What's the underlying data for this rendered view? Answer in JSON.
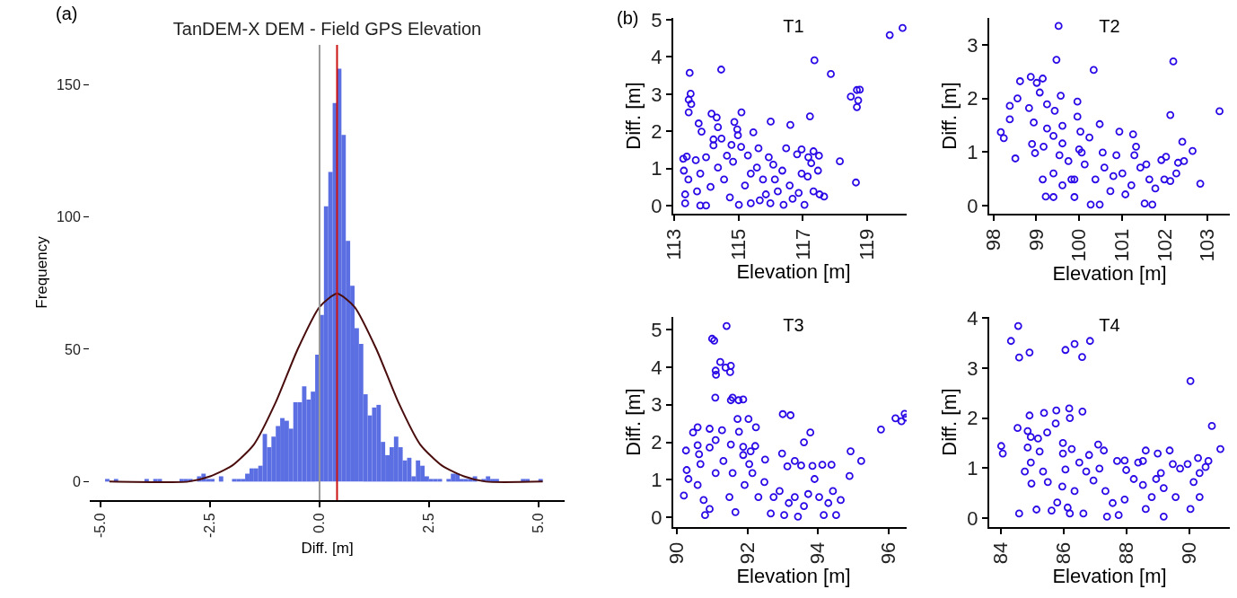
{
  "chart_data": [
    {
      "type": "histogram",
      "title": "TanDEM-X DEM - Field GPS Elevation",
      "xlabel": "Diff. [m]",
      "ylabel": "Frequency",
      "annotations": [
        "(a)"
      ],
      "xlim": [
        -5.25,
        5.6
      ],
      "ylim": [
        -7,
        165
      ],
      "xticks": [
        {
          "value": -5,
          "label": "-5.0"
        },
        {
          "value": -2.5,
          "label": "-2.5"
        },
        {
          "value": 0,
          "label": "0.0"
        },
        {
          "value": 2.5,
          "label": "2.5"
        },
        {
          "value": 5,
          "label": "5.0"
        }
      ],
      "yticks": [
        0,
        50,
        100,
        150
      ],
      "ref_lines": [
        {
          "axis": "x",
          "value": 0,
          "color": "#999999"
        },
        {
          "axis": "x",
          "value": 0.4,
          "color": "#cc1111"
        }
      ],
      "series": [
        {
          "type": "histogram",
          "color": "#5b6fe3",
          "bins": [
            -4.9,
            -4.8,
            -4.7,
            -4.6,
            -4.5,
            -4.4,
            -4.3,
            -4.2,
            -4.1,
            -4.0,
            -3.9,
            -3.8,
            -3.7,
            -3.6,
            -3.5,
            -3.4,
            -3.3,
            -3.2,
            -3.1,
            -3.0,
            -2.9,
            -2.8,
            -2.7,
            -2.6,
            -2.5,
            -2.4,
            -2.3,
            -2.2,
            -2.1,
            -2.0,
            -1.9,
            -1.8,
            -1.7,
            -1.6,
            -1.5,
            -1.4,
            -1.3,
            -1.2,
            -1.1,
            -1.0,
            -0.9,
            -0.8,
            -0.7,
            -0.6,
            -0.5,
            -0.4,
            -0.3,
            -0.2,
            -0.1,
            0.0,
            0.1,
            0.2,
            0.3,
            0.4,
            0.5,
            0.6,
            0.7,
            0.8,
            0.9,
            1.0,
            1.1,
            1.2,
            1.3,
            1.4,
            1.5,
            1.6,
            1.7,
            1.8,
            1.9,
            2.0,
            2.1,
            2.2,
            2.3,
            2.4,
            2.5,
            2.6,
            2.7,
            2.8,
            2.9,
            3.0,
            3.1,
            3.2,
            3.3,
            3.4,
            3.5,
            3.6,
            3.7,
            3.8,
            3.9,
            4.0,
            4.1,
            4.2,
            4.3,
            4.4,
            4.5,
            4.6,
            4.7,
            4.8,
            4.9,
            5.0,
            5.1
          ],
          "values": [
            1,
            0,
            1,
            0,
            0,
            0,
            0,
            0,
            0,
            1,
            0,
            1,
            1,
            0,
            0,
            0,
            0,
            1,
            1,
            1,
            0,
            2,
            3,
            1,
            1,
            0,
            2,
            0,
            0,
            1,
            1,
            1,
            3,
            5,
            5,
            6,
            18,
            13,
            17,
            21,
            24,
            23,
            20,
            30,
            30,
            36,
            31,
            34,
            48,
            63,
            104,
            117,
            143,
            156,
            131,
            91,
            74,
            58,
            52,
            33,
            25,
            28,
            29,
            15,
            10,
            13,
            17,
            13,
            8,
            9,
            2,
            8,
            6,
            2,
            1,
            1,
            1,
            0,
            1,
            3,
            3,
            1,
            1,
            1,
            2,
            0,
            1,
            2,
            1,
            1,
            0,
            0,
            0,
            0,
            0,
            1,
            1,
            0,
            0,
            1
          ]
        },
        {
          "type": "line",
          "color": "#4a0d0d",
          "x": [
            -4.8,
            -3,
            -2.5,
            -2,
            -1.5,
            -1,
            -0.5,
            0,
            0.4,
            0.8,
            1.3,
            1.8,
            2.3,
            2.8,
            3.3,
            3.8,
            5.1
          ],
          "values": [
            0,
            0,
            2,
            6,
            14,
            30,
            50,
            66,
            71,
            66,
            50,
            30,
            14,
            6,
            2,
            0,
            0
          ]
        }
      ]
    },
    {
      "type": "scatter",
      "title": "T1",
      "xlabel": "Elevation [m]",
      "ylabel": "Diff. [m]",
      "annotations": [
        "(b)"
      ],
      "color": "#2a0ae6",
      "marker": "circle",
      "xlim": [
        112.97,
        120.45
      ],
      "ylim": [
        -0.22,
        5.05
      ],
      "xticks": [
        113,
        115,
        117,
        119
      ],
      "yticks": [
        0,
        1,
        2,
        3,
        4,
        5
      ],
      "x": [
        113.48,
        113.51,
        113.45,
        113.53,
        113.45,
        114.46,
        117.36,
        117.87,
        119.7,
        120.1,
        118.49,
        118.68,
        118.77,
        118.72,
        118.68,
        118.65,
        118.15,
        117.22,
        116.61,
        116.0,
        115.09,
        114.16,
        114.32,
        113.76,
        113.85,
        114.36,
        114.87,
        114.96,
        114.98,
        115.46,
        115.62,
        115.08,
        114.22,
        114.47,
        114.22,
        114.78,
        115.29,
        115.94,
        116.48,
        116.96,
        117.33,
        117.5,
        117.17,
        117.47,
        117.26,
        116.82,
        113.28,
        113.39,
        113.67,
        113.3,
        113.99,
        113.44,
        113.81,
        113.34,
        113.34,
        113.81,
        113.99,
        113.71,
        114.13,
        114.36,
        114.55,
        114.83,
        114.73,
        115.01,
        115.2,
        115.38,
        115.57,
        115.76,
        115.85,
        115.99,
        116.13,
        116.22,
        116.36,
        116.4,
        116.59,
        116.68,
        116.87,
        117.05,
        117.15,
        117.33,
        117.52,
        117.66,
        116.96,
        115.38,
        115.66,
        116.08,
        114.64
      ],
      "values": [
        3.57,
        3.01,
        2.85,
        2.73,
        2.51,
        3.66,
        3.91,
        3.54,
        4.59,
        4.78,
        2.93,
        3.11,
        3.12,
        2.83,
        2.65,
        0.62,
        1.19,
        2.4,
        2.17,
        2.26,
        2.51,
        2.47,
        2.37,
        2.21,
        1.99,
        2.11,
        2.25,
        2.05,
        1.89,
        1.97,
        1.54,
        1.58,
        1.78,
        1.8,
        1.62,
        1.63,
        1.35,
        1.3,
        1.54,
        1.51,
        1.46,
        1.34,
        1.3,
        0.94,
        1.14,
        1.38,
        1.26,
        1.32,
        1.22,
        0.94,
        1.3,
        0.7,
        0.86,
        0.3,
        0.06,
        0.0,
        0.0,
        0.38,
        0.5,
        1.02,
        0.7,
        1.18,
        0.22,
        0.02,
        0.54,
        0.86,
        1.02,
        0.7,
        0.3,
        0.06,
        0.7,
        0.38,
        0.94,
        0.02,
        0.54,
        0.18,
        0.34,
        0.02,
        0.78,
        0.38,
        0.3,
        0.24,
        0.86,
        0.06,
        0.14,
        1.1,
        1.34
      ]
    },
    {
      "type": "scatter",
      "title": "T2",
      "xlabel": "Elevation [m]",
      "ylabel": "Diff. [m]",
      "color": "#2a0ae6",
      "marker": "circle",
      "xlim": [
        97.9,
        103.52
      ],
      "ylim": [
        -0.15,
        3.5
      ],
      "xticks": [
        98,
        99,
        100,
        101,
        102,
        103
      ],
      "yticks": [
        0,
        1,
        2,
        3
      ],
      "x": [
        99.52,
        99.47,
        100.34,
        102.2,
        102.13,
        103.28,
        98.17,
        98.24,
        98.51,
        98.38,
        98.38,
        98.56,
        98.62,
        98.87,
        99.01,
        99.15,
        99.08,
        98.83,
        98.94,
        98.9,
        98.97,
        99.17,
        99.15,
        99.22,
        99.4,
        99.25,
        99.43,
        99.25,
        99.4,
        99.57,
        99.61,
        99.61,
        99.54,
        99.75,
        99.4,
        99.61,
        99.96,
        99.96,
        100.03,
        100.0,
        100.13,
        99.89,
        100.24,
        100.48,
        99.89,
        100.27,
        100.48,
        100.38,
        100.59,
        100.8,
        100.94,
        100.87,
        101.01,
        101.26,
        101.33,
        101.29,
        101.22,
        101.43,
        101.57,
        101.64,
        101.53,
        101.71,
        101.78,
        101.92,
        102.03,
        101.99,
        102.13,
        102.31,
        102.41,
        102.45,
        102.27,
        102.65,
        102.83,
        100.73,
        101.08,
        100.55,
        100.06,
        99.82
      ],
      "values": [
        3.35,
        2.72,
        2.53,
        2.69,
        1.69,
        1.76,
        1.37,
        1.26,
        0.88,
        1.61,
        1.86,
        2.0,
        2.32,
        2.4,
        2.29,
        2.37,
        2.11,
        1.82,
        1.55,
        1.15,
        0.98,
        1.1,
        0.49,
        0.17,
        0.16,
        1.89,
        1.77,
        1.44,
        1.3,
        2.05,
        1.49,
        1.16,
        0.94,
        0.83,
        0.6,
        0.38,
        1.94,
        1.66,
        1.38,
        1.05,
        0.77,
        0.49,
        1.27,
        1.52,
        0.16,
        0.02,
        0.02,
        0.49,
        0.71,
        0.55,
        1.38,
        0.94,
        0.6,
        1.33,
        1.1,
        0.94,
        0.38,
        0.71,
        0.77,
        0.49,
        0.04,
        0.02,
        0.32,
        0.85,
        0.91,
        0.49,
        0.46,
        0.8,
        1.19,
        0.83,
        0.6,
        1.02,
        0.41,
        0.27,
        0.21,
        0.99,
        0.99,
        0.49
      ]
    },
    {
      "type": "scatter",
      "title": "T3",
      "xlabel": "Elevation [m]",
      "ylabel": "Diff. [m]",
      "color": "#2a0ae6",
      "marker": "circle",
      "xlim": [
        89.9,
        96.71
      ],
      "ylim": [
        -0.26,
        5.34
      ],
      "xticks": [
        90,
        92,
        94,
        96
      ],
      "yticks": [
        0,
        1,
        2,
        3,
        4,
        5
      ],
      "x": [
        91.41,
        91.0,
        91.06,
        91.23,
        91.1,
        91.11,
        91.38,
        91.53,
        91.51,
        91.09,
        91.58,
        91.53,
        91.75,
        91.88,
        93.0,
        93.22,
        95.78,
        96.19,
        96.45,
        96.36,
        96.49,
        94.92,
        95.22,
        94.89,
        93.78,
        93.6,
        92.03,
        92.24,
        91.72,
        91.76,
        91.53,
        91.28,
        90.93,
        90.59,
        90.46,
        90.26,
        90.59,
        90.63,
        90.93,
        91.1,
        91.88,
        92.22,
        92.09,
        92.5,
        92.98,
        93.13,
        93.34,
        93.52,
        93.84,
        94.12,
        94.38,
        90.2,
        90.33,
        90.28,
        90.59,
        90.76,
        90.8,
        90.93,
        91.1,
        91.32,
        91.58,
        91.49,
        91.66,
        91.92,
        92.14,
        92.31,
        92.48,
        92.66,
        92.74,
        92.91,
        93.04,
        93.17,
        93.34,
        93.43,
        93.6,
        93.72,
        93.9,
        94.03,
        94.16,
        94.29,
        94.42,
        94.51,
        94.64,
        91.88,
        92.05,
        90.67
      ],
      "values": [
        5.1,
        4.76,
        4.71,
        4.14,
        3.91,
        3.8,
        3.99,
        4.04,
        3.87,
        3.19,
        3.19,
        3.12,
        3.12,
        3.14,
        2.75,
        2.72,
        2.34,
        2.64,
        2.76,
        2.56,
        2.66,
        1.76,
        1.5,
        1.1,
        2.26,
        2.0,
        2.62,
        2.4,
        2.62,
        2.28,
        1.94,
        2.32,
        2.36,
        2.4,
        2.26,
        1.78,
        1.92,
        1.68,
        1.86,
        2.06,
        1.88,
        1.9,
        1.76,
        1.54,
        1.7,
        1.36,
        1.5,
        1.38,
        1.37,
        1.4,
        1.4,
        0.58,
        1.02,
        1.26,
        0.86,
        0.46,
        0.06,
        0.22,
        1.18,
        1.5,
        1.18,
        0.54,
        0.14,
        0.86,
        1.18,
        0.54,
        0.94,
        0.1,
        0.54,
        0.7,
        0.06,
        0.38,
        0.54,
        0.02,
        0.3,
        0.62,
        1.02,
        0.54,
        0.06,
        0.38,
        0.7,
        0.06,
        0.46,
        1.66,
        1.42,
        1.42
      ]
    },
    {
      "type": "scatter",
      "title": "T4",
      "xlabel": "Elevation [m]",
      "ylabel": "Diff. [m]",
      "color": "#2a0ae6",
      "marker": "circle",
      "xlim": [
        83.64,
        91.28
      ],
      "ylim": [
        -0.18,
        4.02
      ],
      "xticks": [
        84,
        86,
        88,
        90
      ],
      "yticks": [
        0,
        1,
        2,
        3,
        4
      ],
      "x": [
        84.56,
        84.33,
        84.59,
        84.92,
        86.06,
        86.35,
        86.59,
        86.84,
        90.03,
        90.71,
        90.98,
        84.02,
        84.07,
        84.59,
        84.54,
        84.92,
        85.38,
        85.77,
        86.18,
        86.6,
        86.2,
        85.75,
        85.48,
        84.86,
        84.96,
        85.19,
        85.24,
        84.86,
        84.96,
        84.77,
        84.98,
        85.14,
        85.62,
        85.8,
        85.35,
        85.5,
        85.98,
        85.98,
        86.26,
        86.5,
        85.96,
        86.06,
        86.13,
        86.2,
        86.35,
        86.63,
        86.72,
        86.81,
        87.1,
        86.95,
        87.14,
        87.28,
        87.33,
        87.38,
        87.56,
        87.75,
        87.7,
        87.94,
        87.99,
        87.94,
        88.23,
        88.37,
        88.52,
        88.61,
        88.52,
        88.61,
        88.8,
        88.99,
        88.94,
        89.09,
        89.18,
        89.18,
        89.37,
        89.47,
        89.56,
        89.7,
        89.94,
        90.03,
        90.13,
        90.27,
        90.32,
        90.32,
        90.51,
        90.6
      ],
      "values": [
        3.84,
        3.54,
        3.21,
        3.31,
        3.36,
        3.48,
        3.22,
        3.54,
        2.74,
        1.84,
        1.38,
        1.44,
        1.29,
        0.09,
        1.8,
        2.05,
        2.1,
        2.15,
        2.19,
        2.13,
        2.0,
        1.89,
        1.71,
        1.74,
        1.62,
        1.59,
        1.33,
        1.41,
        1.11,
        0.93,
        0.69,
        0.17,
        0.15,
        0.31,
        0.93,
        0.72,
        1.5,
        1.29,
        1.38,
        1.11,
        0.63,
        0.97,
        0.21,
        0.09,
        0.54,
        0.09,
        0.93,
        1.26,
        1.47,
        0.75,
        0.99,
        1.35,
        0.54,
        0.03,
        0.3,
        0.06,
        1.14,
        1.15,
        0.96,
        0.37,
        0.78,
        1.11,
        1.14,
        1.35,
        0.66,
        0.18,
        0.42,
        1.29,
        0.78,
        0.9,
        0.03,
        0.6,
        1.35,
        1.08,
        0.42,
        0.99,
        1.08,
        0.18,
        0.72,
        1.2,
        0.9,
        0.42,
        1.02,
        1.14
      ]
    }
  ]
}
